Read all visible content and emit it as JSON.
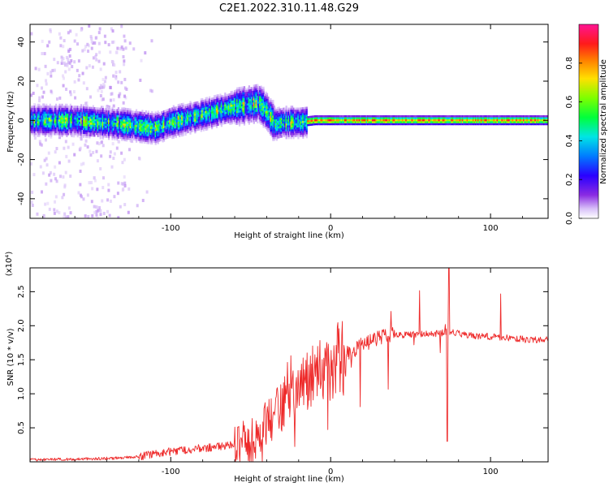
{
  "title": "C2E1.2022.310.11.48.G29",
  "colors": {
    "series_line": "#ee2a2a",
    "colormap": [
      "#e8ddf8",
      "#c9a9f4",
      "#8b3cf0",
      "#3300ff",
      "#0080ff",
      "#00e8e8",
      "#00ff40",
      "#c8ff00",
      "#ffa500",
      "#ff2020",
      "#ff1080"
    ]
  },
  "chart_data": [
    {
      "type": "heatmap",
      "title": "C2E1.2022.310.11.48.G29",
      "xlabel": "Height of straight line (km)",
      "ylabel": "Frequency (Hz)",
      "xlim": [
        -188,
        136
      ],
      "ylim": [
        -50,
        49
      ],
      "x_ticks": [
        -100,
        0,
        100
      ],
      "y_ticks": [
        40,
        20,
        0,
        -20,
        -40
      ],
      "colorbar": {
        "label": "Normalized spectral amplitude",
        "range": [
          0.0,
          1.0
        ],
        "ticks": [
          "0.0",
          "0.2",
          "0.4",
          "0.6",
          "0.8"
        ]
      },
      "ridge_center": {
        "x": [
          -188,
          -160,
          -130,
          -110,
          -100,
          -80,
          -60,
          -45,
          -40,
          -35,
          -30,
          -20,
          -10,
          0,
          50,
          100,
          136
        ],
        "y": [
          0,
          0,
          -2,
          -4,
          -1,
          3,
          7,
          9,
          4,
          -2,
          -1,
          -1,
          0,
          0,
          0,
          0,
          0
        ]
      }
    },
    {
      "type": "line",
      "xlabel": "Height of straight line (km)",
      "ylabel": "SNR (10 * v/v)",
      "y_multiplier": "(x10⁴)",
      "xlim": [
        -188,
        136
      ],
      "ylim": [
        0,
        2.85
      ],
      "x_ticks": [
        -100,
        0,
        100
      ],
      "y_ticks": [
        0.5,
        1.0,
        1.5,
        2.0,
        2.5
      ],
      "series": [
        {
          "x": [
            -188,
            -160,
            -140,
            -130,
            -120,
            -110,
            -100,
            -90,
            -80,
            -70,
            -60,
            -50,
            -45,
            -40,
            -35,
            -30,
            -25,
            -20,
            -15,
            -10,
            -5,
            0,
            5,
            10,
            15,
            20,
            25,
            30,
            35,
            40,
            50,
            60,
            65,
            70,
            75,
            80,
            85,
            90,
            100,
            110,
            120,
            136
          ],
          "y": [
            0.03,
            0.04,
            0.05,
            0.06,
            0.08,
            0.12,
            0.15,
            0.18,
            0.2,
            0.22,
            0.25,
            0.3,
            0.4,
            0.55,
            0.7,
            0.85,
            0.95,
            1.05,
            1.15,
            1.25,
            1.35,
            1.42,
            1.5,
            1.58,
            1.65,
            1.72,
            1.78,
            1.82,
            1.84,
            1.86,
            1.87,
            1.88,
            1.88,
            1.9,
            1.92,
            1.88,
            1.86,
            1.85,
            1.84,
            1.82,
            1.8,
            1.79
          ]
        }
      ]
    }
  ]
}
